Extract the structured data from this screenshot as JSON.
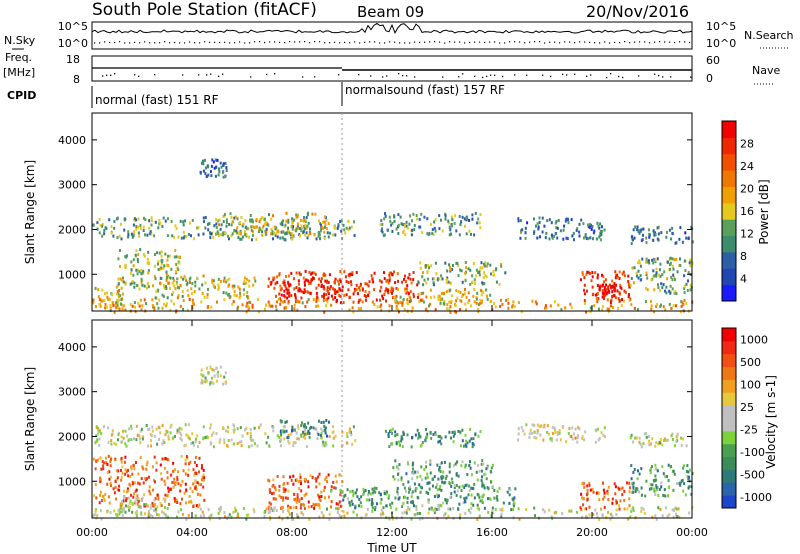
{
  "header": {
    "station": "South Pole Station (fitACF)",
    "beam": "Beam 09",
    "date": "20/Nov/2016"
  },
  "panels": {
    "nsky_label": "N.Sky",
    "nsky_ticks": [
      "10^5",
      "10^0"
    ],
    "nsearch_label": "N.Search",
    "nsearch_ticks": [
      "10^5",
      "10^0"
    ],
    "freq_label_line1": "Freq.",
    "freq_label_line2": "[MHz]",
    "freq_ticks": [
      "18",
      "8"
    ],
    "nave_label": "Nave",
    "nave_ticks": [
      "60",
      "0"
    ],
    "cpid_label": "CPID",
    "cpid_segments": [
      {
        "label": "normal (fast) 151 RF",
        "start_hour": 0,
        "end_hour": 10
      },
      {
        "label": "normalsound (fast) 157 RF",
        "start_hour": 10,
        "end_hour": 24
      }
    ]
  },
  "chart_data": [
    {
      "type": "heatmap",
      "name": "power",
      "ylabel": "Slant Range [km]",
      "yticks": [
        "1000",
        "2000",
        "3000",
        "4000"
      ],
      "ylim": [
        180,
        4600
      ],
      "xlim": [
        0,
        24
      ],
      "colorbar_label": "Power [dB]",
      "colorbar_ticks": [
        "4",
        "8",
        "12",
        "16",
        "20",
        "24",
        "28"
      ],
      "colorbar_colors": [
        "#1a1aff",
        "#2046b4",
        "#2d5ea8",
        "#3c8c6e",
        "#5aa05a",
        "#e6c81e",
        "#f0a000",
        "#f07800",
        "#f05000",
        "#f02800",
        "#f00000"
      ],
      "scatter_blobs": [
        {
          "t0": 0.0,
          "t1": 1.2,
          "r0": 250,
          "r1": 750,
          "level": 0.55
        },
        {
          "t0": 1.0,
          "t1": 3.5,
          "r0": 700,
          "r1": 1600,
          "level": 0.45
        },
        {
          "t0": 2.5,
          "t1": 6.5,
          "r0": 500,
          "r1": 1000,
          "level": 0.5
        },
        {
          "t0": 7.0,
          "t1": 13.0,
          "r0": 400,
          "r1": 1100,
          "level": 0.85
        },
        {
          "t0": 7.5,
          "t1": 10.0,
          "r0": 500,
          "r1": 900,
          "level": 0.95
        },
        {
          "t0": 12.0,
          "t1": 16.0,
          "r0": 350,
          "r1": 700,
          "level": 0.55
        },
        {
          "t0": 13.0,
          "t1": 16.5,
          "r0": 800,
          "r1": 1300,
          "level": 0.4
        },
        {
          "t0": 19.5,
          "t1": 21.5,
          "r0": 400,
          "r1": 1100,
          "level": 0.85
        },
        {
          "t0": 20.2,
          "t1": 20.9,
          "r0": 500,
          "r1": 800,
          "level": 1.0
        },
        {
          "t0": 21.5,
          "t1": 24.0,
          "r0": 600,
          "r1": 1400,
          "level": 0.4
        },
        {
          "t0": 0.0,
          "t1": 10.5,
          "r0": 1800,
          "r1": 2300,
          "level": 0.35
        },
        {
          "t0": 5.0,
          "t1": 9.5,
          "r0": 1900,
          "r1": 2400,
          "level": 0.5
        },
        {
          "t0": 11.5,
          "t1": 15.5,
          "r0": 1900,
          "r1": 2400,
          "level": 0.35
        },
        {
          "t0": 17.0,
          "t1": 20.5,
          "r0": 1800,
          "r1": 2300,
          "level": 0.25
        },
        {
          "t0": 21.5,
          "t1": 24.0,
          "r0": 1700,
          "r1": 2100,
          "level": 0.25
        },
        {
          "t0": 4.3,
          "t1": 5.4,
          "r0": 3200,
          "r1": 3600,
          "level": 0.2
        },
        {
          "t0": 0.0,
          "t1": 24.0,
          "r0": 180,
          "r1": 480,
          "level": 0.6
        }
      ]
    },
    {
      "type": "heatmap",
      "name": "velocity",
      "ylabel": "Slant Range [km]",
      "yticks": [
        "1000",
        "2000",
        "3000",
        "4000"
      ],
      "ylim": [
        180,
        4600
      ],
      "xlim": [
        0,
        24
      ],
      "xlabel": "Time UT",
      "xticks": [
        "00:00",
        "04:00",
        "08:00",
        "12:00",
        "16:00",
        "20:00",
        "00:00"
      ],
      "colorbar_label": "Velocity [m s-1]",
      "colorbar_ticks": [
        "1000",
        "500",
        "100",
        "25",
        "-25",
        "-100",
        "-500",
        "-1000"
      ],
      "colorbar_colors": [
        "#1e46c8",
        "#2a64aa",
        "#2e7a78",
        "#3c8c5a",
        "#4aa050",
        "#7cd23c",
        "#c0c0c0",
        "#c0c0c0",
        "#e6c83c",
        "#f0a01e",
        "#f07814",
        "#f05014",
        "#f02814",
        "#f00000"
      ],
      "scatter_blobs": [
        {
          "t0": 0.0,
          "t1": 4.5,
          "r0": 450,
          "r1": 1600,
          "level": 0.78
        },
        {
          "t0": 1.0,
          "t1": 3.0,
          "r0": 250,
          "r1": 700,
          "level": 0.5
        },
        {
          "t0": 7.0,
          "t1": 10.0,
          "r0": 400,
          "r1": 1200,
          "level": 0.8
        },
        {
          "t0": 9.5,
          "t1": 17.0,
          "r0": 400,
          "r1": 900,
          "level": 0.28
        },
        {
          "t0": 12.0,
          "t1": 16.0,
          "r0": 900,
          "r1": 1500,
          "level": 0.3
        },
        {
          "t0": 19.5,
          "t1": 21.5,
          "r0": 400,
          "r1": 1000,
          "level": 0.8
        },
        {
          "t0": 21.5,
          "t1": 24.0,
          "r0": 700,
          "r1": 1400,
          "level": 0.3
        },
        {
          "t0": 0.0,
          "t1": 10.5,
          "r0": 1800,
          "r1": 2300,
          "level": 0.5
        },
        {
          "t0": 7.5,
          "t1": 9.5,
          "r0": 2000,
          "r1": 2400,
          "level": 0.2
        },
        {
          "t0": 11.5,
          "t1": 15.5,
          "r0": 1800,
          "r1": 2200,
          "level": 0.25
        },
        {
          "t0": 17.0,
          "t1": 20.5,
          "r0": 1900,
          "r1": 2300,
          "level": 0.55
        },
        {
          "t0": 21.5,
          "t1": 24.0,
          "r0": 1800,
          "r1": 2100,
          "level": 0.5
        },
        {
          "t0": 4.3,
          "t1": 5.4,
          "r0": 3200,
          "r1": 3600,
          "level": 0.5
        },
        {
          "t0": 0.0,
          "t1": 24.0,
          "r0": 180,
          "r1": 450,
          "level": 0.5
        }
      ]
    }
  ]
}
